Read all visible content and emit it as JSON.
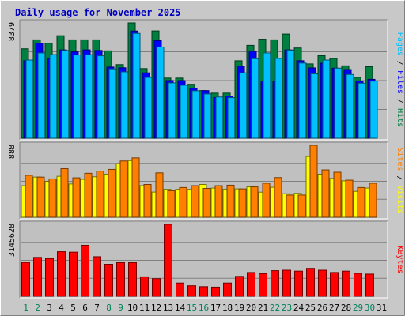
{
  "chart_data": {
    "type": "bar",
    "title": "Daily usage for November 2025",
    "categories": [
      "1",
      "2",
      "3",
      "4",
      "5",
      "6",
      "7",
      "8",
      "9",
      "10",
      "11",
      "12",
      "13",
      "14",
      "15",
      "16",
      "17",
      "18",
      "19",
      "20",
      "21",
      "22",
      "23",
      "24",
      "25",
      "26",
      "27",
      "28",
      "29",
      "30",
      "31"
    ],
    "weekend_days": [
      "1",
      "2",
      "8",
      "9",
      "15",
      "16",
      "22",
      "23",
      "29",
      "30"
    ],
    "panels": [
      {
        "id": "hits",
        "ymax_label": "8379",
        "ymax": 8379,
        "ylabel_parts": [
          "Pages",
          "Files",
          "Hits"
        ],
        "series": [
          {
            "name": "Hits",
            "color": "#008040",
            "values": [
              6500,
              7150,
              6900,
              7450,
              7150,
              7150,
              7150,
              6350,
              5350,
              8379,
              5060,
              7800,
              4370,
              4370,
              3920,
              3460,
              3280,
              3280,
              5630,
              6750,
              7200,
              7150,
              7570,
              6560,
              5400,
              6000,
              5800,
              5260,
              4430,
              5200,
              0
            ]
          },
          {
            "name": "Files",
            "color": "#0000ff",
            "values": [
              5630,
              6900,
              5770,
              6420,
              6280,
              6420,
              6380,
              5170,
              5120,
              7790,
              4750,
              7090,
              4190,
              4190,
              3640,
              3460,
              2960,
              3070,
              5230,
              6310,
              4150,
              4150,
              6420,
              5630,
              5110,
              5450,
              5090,
              4990,
              4160,
              4280,
              0
            ]
          },
          {
            "name": "Pages",
            "color": "#00c0ff",
            "values": [
              5680,
              6200,
              6080,
              6380,
              6050,
              6070,
              5990,
              5040,
              4820,
              7620,
              4420,
              6630,
              4020,
              3850,
              3450,
              3220,
              3000,
              2950,
              4750,
              5780,
              6200,
              5800,
              6400,
              5460,
              4680,
              5680,
              5090,
              4630,
              4000,
              4150,
              0
            ]
          }
        ]
      },
      {
        "id": "visits",
        "ymax_label": "888",
        "ymax": 888,
        "ylabel_parts": [
          "Sites",
          "Visits"
        ],
        "series": [
          {
            "name": "Visits",
            "color": "#ffff00",
            "values": [
              390,
              496,
              444,
              506,
              411,
              468,
              500,
              532,
              662,
              700,
              390,
              311,
              345,
              345,
              345,
              405,
              360,
              345,
              350,
              375,
              310,
              370,
              290,
              295,
              750,
              532,
              480,
              450,
              320,
              360,
              0
            ]
          },
          {
            "name": "Sites",
            "color": "#ff8000",
            "values": [
              518,
              496,
              474,
              600,
              487,
              543,
              570,
              591,
              695,
              733,
              405,
              548,
              328,
              367,
              390,
              356,
              390,
              396,
              350,
              375,
              420,
              490,
              274,
              274,
              888,
              585,
              556,
              458,
              367,
              420,
              0
            ]
          }
        ]
      },
      {
        "id": "kbytes",
        "ymax_label": "3145628",
        "ymax": 3145628,
        "ylabel_parts": [
          "KBytes"
        ],
        "series": [
          {
            "name": "KBytes",
            "color": "#ff0000",
            "values": [
              1480000,
              1700000,
              1650000,
              1950000,
              1930000,
              2230000,
              1730000,
              1400000,
              1470000,
              1470000,
              850000,
              770000,
              3145628,
              580000,
              460000,
              420000,
              400000,
              580000,
              870000,
              1040000,
              990000,
              1120000,
              1140000,
              1100000,
              1220000,
              1140000,
              1040000,
              1100000,
              1000000,
              970000,
              0
            ]
          }
        ]
      }
    ]
  }
}
